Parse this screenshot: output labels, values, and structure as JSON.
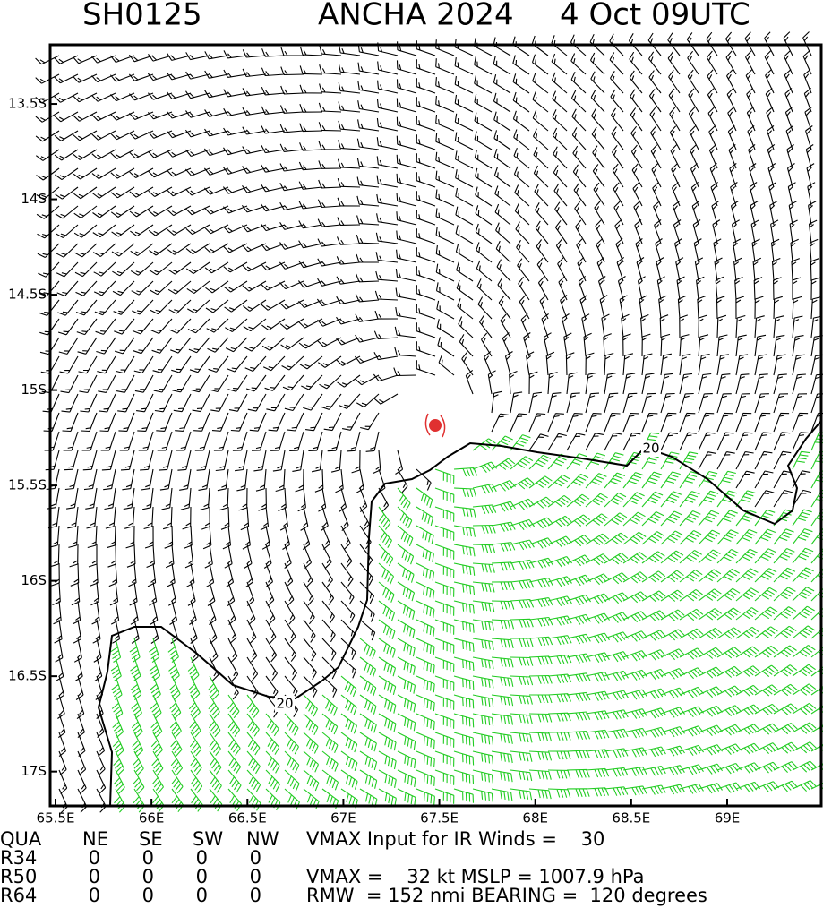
{
  "header": {
    "storm_id": "SH0125",
    "storm_name": "ANCHA 2024",
    "time": "4 Oct 09UTC"
  },
  "map": {
    "xlim": [
      65.472,
      69.49
    ],
    "ylim": [
      -17.18,
      -13.19
    ],
    "xticks": [
      {
        "value": 65.5,
        "label": "65.5E"
      },
      {
        "value": 66,
        "label": "66E"
      },
      {
        "value": 66.5,
        "label": "66.5E"
      },
      {
        "value": 67,
        "label": "67E"
      },
      {
        "value": 67.5,
        "label": "67.5E"
      },
      {
        "value": 68,
        "label": "68E"
      },
      {
        "value": 68.5,
        "label": "68.5E"
      },
      {
        "value": 69,
        "label": "69E"
      }
    ],
    "yticks": [
      {
        "value": -13.5,
        "label": "13.5S"
      },
      {
        "value": -14,
        "label": "14S"
      },
      {
        "value": -14.5,
        "label": "14.5S"
      },
      {
        "value": -15,
        "label": "15S"
      },
      {
        "value": -15.5,
        "label": "15.5S"
      },
      {
        "value": -16,
        "label": "16S"
      },
      {
        "value": -16.5,
        "label": "16.5S"
      },
      {
        "value": -17,
        "label": "17S"
      }
    ],
    "contour_labels": [
      "20",
      "20"
    ]
  },
  "table": {
    "header": [
      "QUA",
      "NE",
      "SE",
      "SW",
      "NW"
    ],
    "rows": [
      [
        "R34",
        "0",
        "0",
        "0",
        "0"
      ],
      [
        "R50",
        "0",
        "0",
        "0",
        "0"
      ],
      [
        "R64",
        "0",
        "0",
        "0",
        "0"
      ]
    ]
  },
  "info": [
    "VMAX Input for IR Winds =    30",
    "VMAX =    32 kt MSLP = 1007.9 hPa",
    "RMW  = 152 nmi BEARING =  120 degrees"
  ]
}
